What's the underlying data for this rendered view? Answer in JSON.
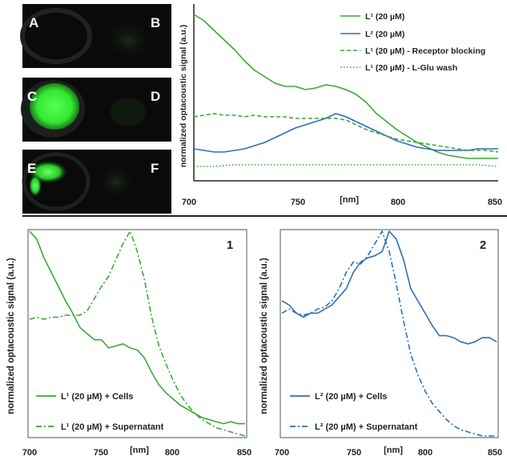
{
  "panels": [
    {
      "letter_left": "A",
      "letter_right": "B",
      "glow": 0.0
    },
    {
      "letter_left": "C",
      "letter_right": "D",
      "glow": 1.0
    },
    {
      "letter_left": "E",
      "letter_right": "F",
      "glow": 0.6
    }
  ],
  "colors": {
    "green": "#3aa935",
    "blue": "#2f6fb6",
    "panel_bg": "#0a0a0a"
  },
  "chart_data": [
    {
      "type": "line",
      "xlim": [
        700,
        850
      ],
      "xticks": [
        "700",
        "750",
        "800",
        "850"
      ],
      "xlabel": "[nm]",
      "ylabel": "normalized optacoustic signal (a.u.)",
      "ylim": [
        0,
        1
      ],
      "grid": false,
      "legend": "top-right",
      "series": [
        {
          "name": "L¹ (20 µM)",
          "color": "#3aa935",
          "style": "solid",
          "x": [
            700,
            705,
            710,
            715,
            720,
            725,
            730,
            735,
            740,
            745,
            750,
            755,
            760,
            765,
            770,
            775,
            780,
            785,
            790,
            795,
            800,
            805,
            810,
            815,
            820,
            825,
            830,
            835,
            840,
            845,
            850
          ],
          "y": [
            1.0,
            0.96,
            0.9,
            0.84,
            0.78,
            0.71,
            0.65,
            0.61,
            0.57,
            0.55,
            0.55,
            0.53,
            0.54,
            0.56,
            0.55,
            0.53,
            0.5,
            0.45,
            0.38,
            0.33,
            0.28,
            0.24,
            0.2,
            0.17,
            0.14,
            0.12,
            0.11,
            0.1,
            0.1,
            0.1,
            0.1
          ]
        },
        {
          "name": "L² (20 µM)",
          "color": "#2f6fb6",
          "style": "solid",
          "x": [
            700,
            705,
            710,
            715,
            720,
            725,
            730,
            735,
            740,
            745,
            750,
            755,
            760,
            765,
            770,
            775,
            780,
            785,
            790,
            795,
            800,
            805,
            810,
            815,
            820,
            825,
            830,
            835,
            840,
            845,
            850
          ],
          "y": [
            0.16,
            0.15,
            0.14,
            0.14,
            0.15,
            0.16,
            0.18,
            0.2,
            0.23,
            0.26,
            0.29,
            0.31,
            0.33,
            0.35,
            0.38,
            0.36,
            0.33,
            0.3,
            0.27,
            0.24,
            0.21,
            0.19,
            0.17,
            0.16,
            0.15,
            0.15,
            0.15,
            0.15,
            0.16,
            0.16,
            0.16
          ]
        },
        {
          "name": "L¹ (20 µM) - Receptor blocking",
          "color": "#3aa935",
          "style": "dashed",
          "x": [
            700,
            705,
            710,
            715,
            720,
            725,
            730,
            735,
            740,
            745,
            750,
            755,
            760,
            765,
            770,
            775,
            780,
            785,
            790,
            795,
            800,
            805,
            810,
            815,
            820,
            825,
            830,
            835,
            840,
            845,
            850
          ],
          "y": [
            0.36,
            0.37,
            0.38,
            0.37,
            0.37,
            0.36,
            0.37,
            0.36,
            0.36,
            0.36,
            0.35,
            0.35,
            0.35,
            0.35,
            0.35,
            0.34,
            0.31,
            0.28,
            0.26,
            0.24,
            0.22,
            0.21,
            0.2,
            0.19,
            0.18,
            0.17,
            0.16,
            0.15,
            0.15,
            0.15,
            0.14
          ]
        },
        {
          "name": "L¹ (20 µM) - L-Glu wash",
          "color": "#3aa935",
          "style": "dotted",
          "x": [
            700,
            710,
            720,
            730,
            740,
            750,
            760,
            770,
            780,
            790,
            800,
            810,
            820,
            830,
            840,
            850
          ],
          "y": [
            0.05,
            0.05,
            0.06,
            0.06,
            0.06,
            0.06,
            0.06,
            0.06,
            0.06,
            0.06,
            0.06,
            0.06,
            0.06,
            0.06,
            0.06,
            0.05
          ]
        }
      ]
    },
    {
      "type": "line",
      "panel_label": "1",
      "xlim": [
        700,
        850
      ],
      "xticks": [
        "700",
        "750",
        "800",
        "850"
      ],
      "xlabel": "[nm]",
      "ylabel": "normalized optacoustic signal (a.u.)",
      "ylim": [
        0,
        1
      ],
      "grid": false,
      "legend": "bottom-left",
      "series": [
        {
          "name": "L¹ (20 µM) + Cells",
          "color": "#3aa935",
          "style": "solid",
          "x": [
            700,
            705,
            710,
            715,
            720,
            725,
            730,
            735,
            740,
            745,
            750,
            755,
            760,
            765,
            770,
            775,
            780,
            785,
            790,
            795,
            800,
            805,
            810,
            815,
            820,
            825,
            830,
            835,
            840,
            845,
            850
          ],
          "y": [
            1.0,
            0.96,
            0.87,
            0.8,
            0.73,
            0.66,
            0.6,
            0.53,
            0.5,
            0.47,
            0.47,
            0.43,
            0.44,
            0.45,
            0.43,
            0.42,
            0.38,
            0.31,
            0.25,
            0.21,
            0.18,
            0.15,
            0.13,
            0.11,
            0.09,
            0.08,
            0.07,
            0.06,
            0.07,
            0.06,
            0.06
          ]
        },
        {
          "name": "L¹ (20 µM) + Supernatant",
          "color": "#3aa935",
          "style": "dashdot",
          "x": [
            700,
            705,
            710,
            715,
            720,
            725,
            730,
            735,
            740,
            745,
            750,
            755,
            760,
            765,
            770,
            775,
            780,
            785,
            790,
            795,
            800,
            805,
            810,
            815,
            820,
            825,
            830,
            835,
            840,
            845,
            850
          ],
          "y": [
            0.57,
            0.58,
            0.57,
            0.58,
            0.58,
            0.59,
            0.59,
            0.59,
            0.61,
            0.67,
            0.73,
            0.78,
            0.86,
            0.94,
            1.0,
            0.9,
            0.76,
            0.58,
            0.44,
            0.35,
            0.27,
            0.2,
            0.15,
            0.11,
            0.08,
            0.06,
            0.04,
            0.03,
            0.02,
            0.01,
            0.0
          ]
        }
      ]
    },
    {
      "type": "line",
      "panel_label": "2",
      "xlim": [
        700,
        850
      ],
      "xticks": [
        "700",
        "750",
        "800",
        "850"
      ],
      "xlabel": "[nm]",
      "ylabel": "normalized optacoustic signal (a.u.)",
      "ylim": [
        0,
        1
      ],
      "grid": false,
      "legend": "bottom-left",
      "series": [
        {
          "name": "L²  (20 µM) + Cells",
          "color": "#2f6fb6",
          "style": "solid",
          "x": [
            700,
            705,
            710,
            715,
            720,
            725,
            730,
            735,
            740,
            745,
            750,
            755,
            760,
            765,
            770,
            775,
            780,
            785,
            790,
            795,
            800,
            805,
            810,
            815,
            820,
            825,
            830,
            835,
            840,
            845,
            850
          ],
          "y": [
            0.66,
            0.64,
            0.6,
            0.58,
            0.6,
            0.6,
            0.62,
            0.64,
            0.68,
            0.72,
            0.8,
            0.85,
            0.87,
            0.88,
            0.9,
            1.0,
            0.96,
            0.86,
            0.72,
            0.66,
            0.6,
            0.54,
            0.49,
            0.49,
            0.48,
            0.46,
            0.45,
            0.46,
            0.48,
            0.48,
            0.46
          ]
        },
        {
          "name": "L²  (20 µM) + Supernatant",
          "color": "#2f6fb6",
          "style": "dashdot",
          "x": [
            700,
            705,
            710,
            715,
            720,
            725,
            730,
            735,
            740,
            745,
            750,
            755,
            760,
            765,
            770,
            775,
            780,
            785,
            790,
            795,
            800,
            805,
            810,
            815,
            820,
            825,
            830,
            835,
            840,
            845,
            850
          ],
          "y": [
            0.6,
            0.62,
            0.6,
            0.59,
            0.6,
            0.62,
            0.63,
            0.66,
            0.72,
            0.8,
            0.85,
            0.84,
            0.88,
            0.94,
            1.0,
            0.9,
            0.74,
            0.56,
            0.4,
            0.3,
            0.22,
            0.16,
            0.12,
            0.08,
            0.05,
            0.03,
            0.02,
            0.01,
            0.0,
            0.0,
            0.0
          ]
        }
      ]
    }
  ]
}
